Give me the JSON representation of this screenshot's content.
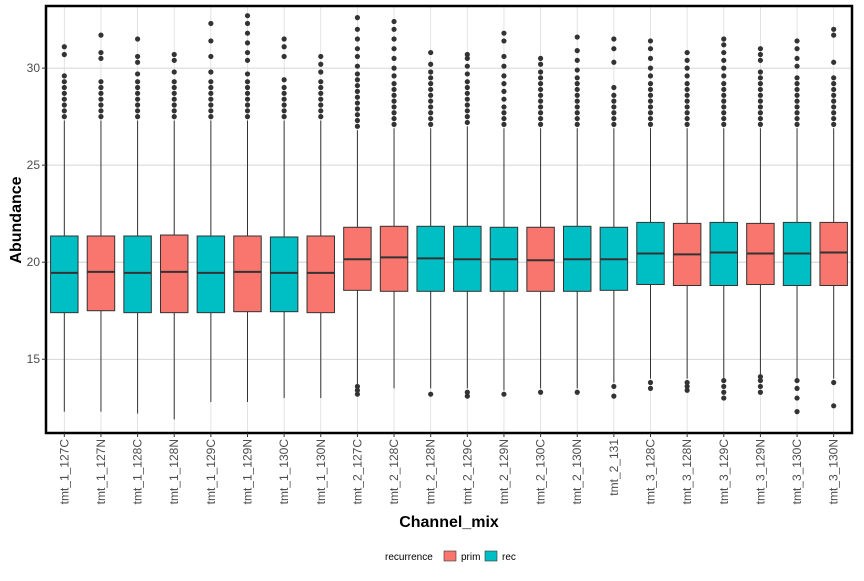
{
  "chart_data": {
    "type": "boxplot",
    "title": "",
    "xlabel": "Channel_mix",
    "ylabel": "Abundance",
    "ylim": [
      11.2,
      33.2
    ],
    "y_ticks": [
      15,
      20,
      25,
      30
    ],
    "grid": true,
    "legend_position": "bottom",
    "legend": {
      "title": "recurrence",
      "entries": [
        {
          "name": "prim",
          "color": "#F8766D"
        },
        {
          "name": "rec",
          "color": "#00BFC4"
        }
      ]
    },
    "categories": [
      "tmt_1_127C",
      "tmt_1_127N",
      "tmt_1_128C",
      "tmt_1_128N",
      "tmt_1_129C",
      "tmt_1_129N",
      "tmt_1_130C",
      "tmt_1_130N",
      "tmt_2_127C",
      "tmt_2_128C",
      "tmt_2_128N",
      "tmt_2_129C",
      "tmt_2_129N",
      "tmt_2_130C",
      "tmt_2_130N",
      "tmt_2_131",
      "tmt_3_128C",
      "tmt_3_128N",
      "tmt_3_129C",
      "tmt_3_129N",
      "tmt_3_130C",
      "tmt_3_130N"
    ],
    "boxes": [
      {
        "group": "rec",
        "q1": 17.4,
        "median": 19.45,
        "q3": 21.35,
        "lower_whisker": 12.3,
        "upper_whisker": 27.3,
        "outliers": [
          27.5,
          27.8,
          28.1,
          28.4,
          28.7,
          29.0,
          29.3,
          29.6,
          30.7,
          31.1
        ]
      },
      {
        "group": "prim",
        "q1": 17.5,
        "median": 19.5,
        "q3": 21.35,
        "lower_whisker": 12.3,
        "upper_whisker": 27.3,
        "outliers": [
          27.5,
          27.8,
          28.1,
          28.4,
          28.7,
          29.0,
          29.3,
          30.5,
          30.8,
          31.7
        ]
      },
      {
        "group": "rec",
        "q1": 17.4,
        "median": 19.45,
        "q3": 21.35,
        "lower_whisker": 12.2,
        "upper_whisker": 27.3,
        "outliers": [
          27.5,
          27.8,
          28.1,
          28.4,
          28.7,
          29.0,
          29.3,
          29.7,
          30.3,
          30.6,
          31.5
        ]
      },
      {
        "group": "prim",
        "q1": 17.4,
        "median": 19.5,
        "q3": 21.4,
        "lower_whisker": 11.9,
        "upper_whisker": 27.3,
        "outliers": [
          27.5,
          27.8,
          28.1,
          28.4,
          28.7,
          29.0,
          29.3,
          29.8,
          30.4,
          30.7
        ]
      },
      {
        "group": "rec",
        "q1": 17.4,
        "median": 19.45,
        "q3": 21.35,
        "lower_whisker": 12.8,
        "upper_whisker": 27.3,
        "outliers": [
          27.5,
          27.8,
          28.1,
          28.4,
          28.7,
          29.0,
          29.3,
          29.8,
          30.6,
          31.4,
          32.3
        ]
      },
      {
        "group": "prim",
        "q1": 17.45,
        "median": 19.5,
        "q3": 21.35,
        "lower_whisker": 12.8,
        "upper_whisker": 27.3,
        "outliers": [
          27.5,
          27.8,
          28.1,
          28.4,
          28.7,
          29.0,
          29.3,
          29.7,
          30.4,
          30.8,
          31.3,
          31.8,
          32.3,
          32.7
        ]
      },
      {
        "group": "rec",
        "q1": 17.45,
        "median": 19.45,
        "q3": 21.3,
        "lower_whisker": 13.0,
        "upper_whisker": 27.3,
        "outliers": [
          27.5,
          27.8,
          28.1,
          28.4,
          28.7,
          29.0,
          29.4,
          30.6,
          31.1,
          31.5
        ]
      },
      {
        "group": "prim",
        "q1": 17.4,
        "median": 19.45,
        "q3": 21.35,
        "lower_whisker": 13.0,
        "upper_whisker": 27.3,
        "outliers": [
          27.5,
          27.8,
          28.1,
          28.4,
          28.7,
          29.0,
          29.3,
          29.8,
          30.2,
          30.6
        ]
      },
      {
        "group": "prim",
        "q1": 18.55,
        "median": 20.15,
        "q3": 21.8,
        "lower_whisker": 13.7,
        "upper_whisker": 26.8,
        "outliers": [
          13.2,
          13.4,
          13.6,
          27.0,
          27.3,
          27.6,
          27.9,
          28.2,
          28.5,
          28.8,
          29.1,
          29.4,
          29.7,
          30.1,
          30.6,
          31.0,
          31.5,
          32.0,
          32.6
        ]
      },
      {
        "group": "prim",
        "q1": 18.5,
        "median": 20.25,
        "q3": 21.85,
        "lower_whisker": 13.5,
        "upper_whisker": 26.9,
        "outliers": [
          27.1,
          27.4,
          27.7,
          28.0,
          28.3,
          28.6,
          28.9,
          29.2,
          29.6,
          30.0,
          30.5,
          31.0,
          31.5,
          32.0,
          32.4
        ]
      },
      {
        "group": "rec",
        "q1": 18.5,
        "median": 20.2,
        "q3": 21.85,
        "lower_whisker": 13.5,
        "upper_whisker": 26.9,
        "outliers": [
          13.2,
          27.1,
          27.4,
          27.7,
          28.0,
          28.3,
          28.6,
          28.9,
          29.2,
          29.5,
          29.8,
          30.2,
          30.8
        ]
      },
      {
        "group": "rec",
        "q1": 18.5,
        "median": 20.15,
        "q3": 21.85,
        "lower_whisker": 13.5,
        "upper_whisker": 27.0,
        "outliers": [
          13.1,
          13.3,
          27.2,
          27.5,
          27.8,
          28.1,
          28.4,
          28.7,
          29.0,
          29.3,
          29.7,
          30.1,
          30.5,
          30.7
        ]
      },
      {
        "group": "rec",
        "q1": 18.5,
        "median": 20.15,
        "q3": 21.8,
        "lower_whisker": 13.4,
        "upper_whisker": 26.9,
        "outliers": [
          13.2,
          27.1,
          27.4,
          27.7,
          28.0,
          28.4,
          28.8,
          29.2,
          29.6,
          30.1,
          30.6,
          31.4,
          31.8
        ]
      },
      {
        "group": "prim",
        "q1": 18.5,
        "median": 20.1,
        "q3": 21.8,
        "lower_whisker": 13.5,
        "upper_whisker": 26.9,
        "outliers": [
          13.3,
          27.1,
          27.4,
          27.7,
          28.0,
          28.3,
          28.6,
          28.9,
          29.2,
          29.5,
          29.8,
          30.2,
          30.5
        ]
      },
      {
        "group": "rec",
        "q1": 18.5,
        "median": 20.15,
        "q3": 21.85,
        "lower_whisker": 13.5,
        "upper_whisker": 26.9,
        "outliers": [
          13.3,
          27.1,
          27.4,
          27.7,
          28.0,
          28.3,
          28.6,
          28.9,
          29.2,
          29.5,
          29.9,
          30.4,
          30.9,
          31.6
        ]
      },
      {
        "group": "rec",
        "q1": 18.55,
        "median": 20.15,
        "q3": 21.8,
        "lower_whisker": 13.8,
        "upper_whisker": 26.9,
        "outliers": [
          13.1,
          13.6,
          27.1,
          27.4,
          27.7,
          28.0,
          28.3,
          28.6,
          29.0,
          30.3,
          31.0,
          31.5
        ]
      },
      {
        "group": "rec",
        "q1": 18.85,
        "median": 20.45,
        "q3": 22.05,
        "lower_whisker": 14.0,
        "upper_whisker": 26.9,
        "outliers": [
          13.5,
          13.8,
          27.1,
          27.4,
          27.7,
          28.0,
          28.3,
          28.6,
          28.9,
          29.2,
          29.6,
          30.0,
          30.5,
          31.0,
          31.4
        ]
      },
      {
        "group": "prim",
        "q1": 18.8,
        "median": 20.4,
        "q3": 22.0,
        "lower_whisker": 14.0,
        "upper_whisker": 26.9,
        "outliers": [
          13.4,
          13.6,
          13.8,
          27.1,
          27.4,
          27.7,
          28.0,
          28.3,
          28.6,
          28.9,
          29.2,
          29.6,
          30.0,
          30.4,
          30.8
        ]
      },
      {
        "group": "rec",
        "q1": 18.8,
        "median": 20.5,
        "q3": 22.05,
        "lower_whisker": 14.0,
        "upper_whisker": 26.9,
        "outliers": [
          13.0,
          13.3,
          13.6,
          13.9,
          27.1,
          27.4,
          27.7,
          28.0,
          28.3,
          28.6,
          28.9,
          29.2,
          29.6,
          30.0,
          30.4,
          30.8,
          31.2,
          31.5
        ]
      },
      {
        "group": "prim",
        "q1": 18.85,
        "median": 20.45,
        "q3": 22.0,
        "lower_whisker": 14.0,
        "upper_whisker": 26.9,
        "outliers": [
          13.3,
          13.6,
          13.9,
          14.1,
          27.1,
          27.4,
          27.7,
          28.0,
          28.3,
          28.6,
          28.9,
          29.2,
          29.5,
          29.8,
          30.4,
          30.7,
          31.0
        ]
      },
      {
        "group": "rec",
        "q1": 18.8,
        "median": 20.45,
        "q3": 22.05,
        "lower_whisker": 14.0,
        "upper_whisker": 26.9,
        "outliers": [
          12.3,
          13.0,
          13.5,
          13.9,
          27.1,
          27.4,
          27.7,
          28.0,
          28.3,
          28.6,
          28.9,
          29.2,
          29.5,
          30.1,
          30.5,
          31.0,
          31.4
        ]
      },
      {
        "group": "prim",
        "q1": 18.8,
        "median": 20.5,
        "q3": 22.05,
        "lower_whisker": 14.0,
        "upper_whisker": 26.9,
        "outliers": [
          12.6,
          13.8,
          27.1,
          27.4,
          27.7,
          28.0,
          28.3,
          28.6,
          28.9,
          29.2,
          29.5,
          30.3,
          31.7,
          32.0
        ]
      }
    ]
  }
}
